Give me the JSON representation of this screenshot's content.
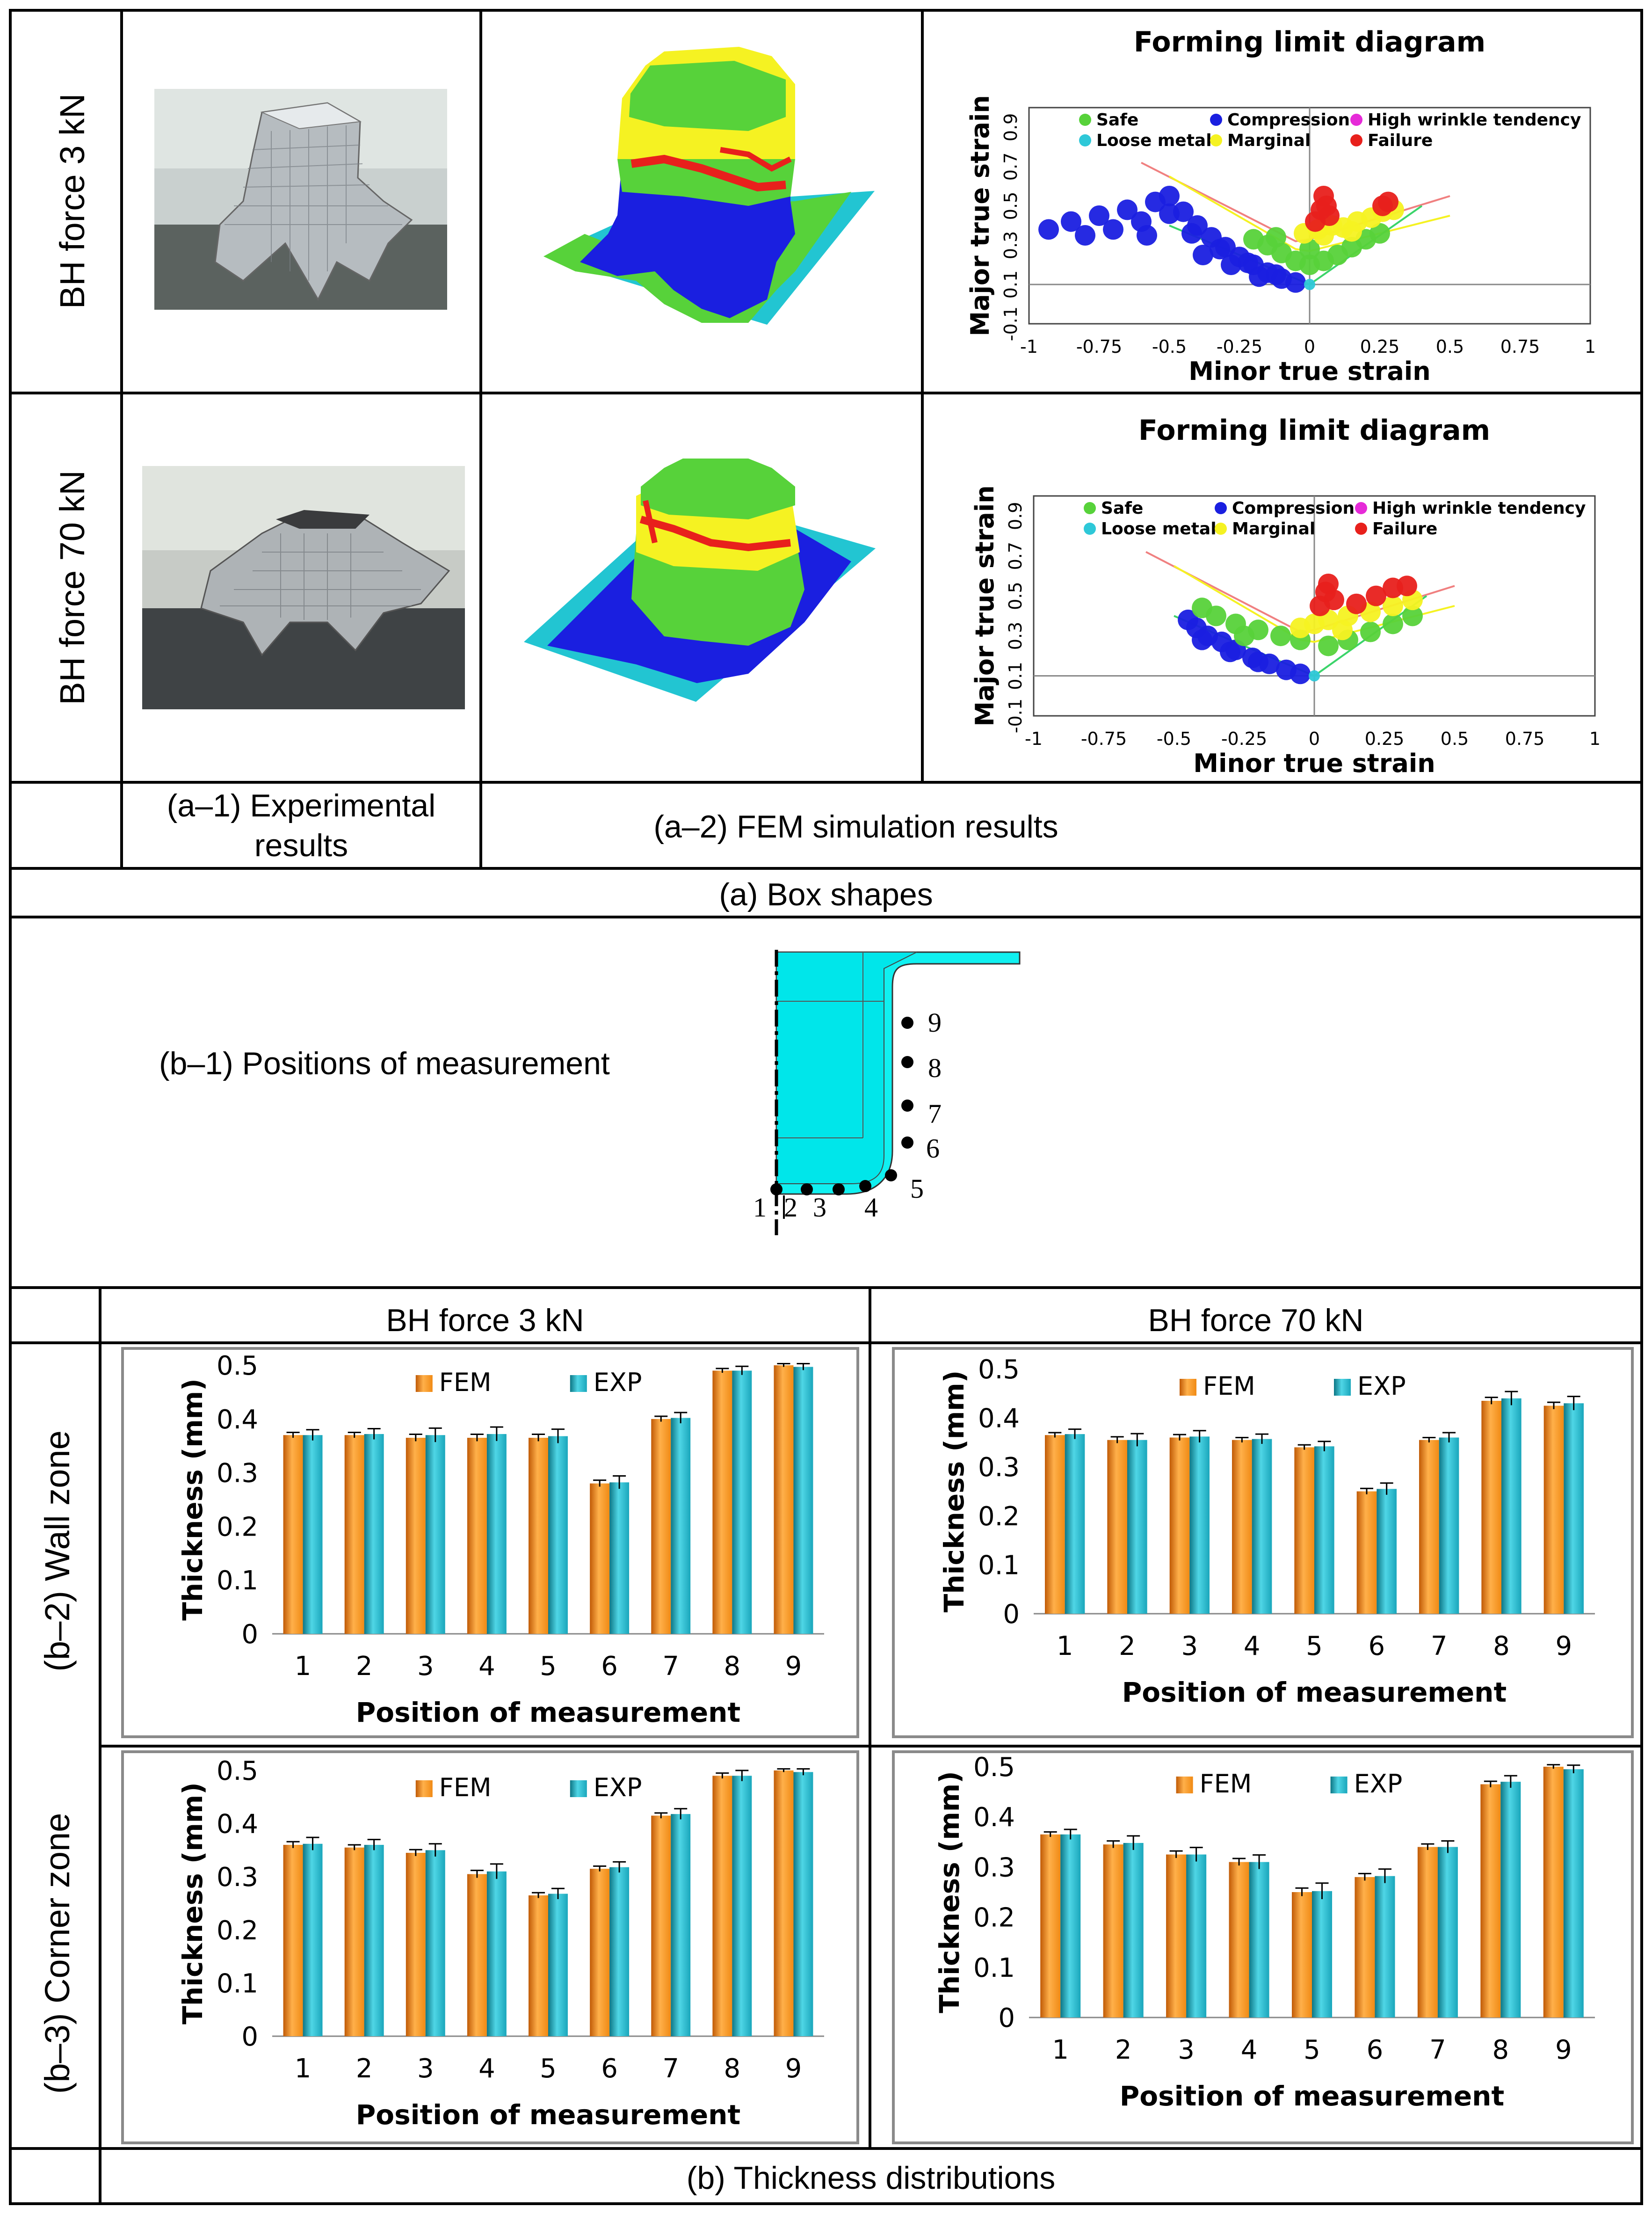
{
  "figure": {
    "row_labels": {
      "bh3": "BH force 3 kN",
      "bh70": "BH force 70 kN"
    },
    "captions": {
      "a1_line1": "(a–1) Experimental",
      "a1_line2": "results",
      "a2": "(a–2) FEM simulation results",
      "a": "(a)  Box shapes",
      "b1": "(b–1) Positions of measurement",
      "b2": "(b–2) Wall zone",
      "b3": "(b–3) Corner zone",
      "b": "(b)  Thickness distributions",
      "col_bh3": "BH force 3 kN",
      "col_bh70": "BH force 70 kN"
    },
    "measurement_points": [
      "1",
      "2",
      "3",
      "4",
      "5",
      "6",
      "7",
      "8",
      "9"
    ],
    "colors": {
      "safe": "#57d23a",
      "compression": "#1a1fe0",
      "loose_metal": "#2ec8d8",
      "marginal": "#f5f222",
      "failure": "#e8201c",
      "high_wrinkle": "#e62ad8",
      "fem_bar": "#f08a14",
      "exp_bar": "#1aa6bb",
      "part_cyan": "#00f0f0"
    }
  },
  "chart_data": [
    {
      "id": "fld_bh3",
      "type": "scatter",
      "title": "Forming limit diagram",
      "xlabel": "Minor true strain",
      "ylabel": "Major true strain",
      "xlim": [
        -1,
        1
      ],
      "ylim": [
        -0.1,
        1.0
      ],
      "xticks": [
        "-1",
        "-0.75",
        "-0.5",
        "-0.25",
        "0",
        "0.25",
        "0.5",
        "0.75",
        "1"
      ],
      "yticks": [
        "-0.1",
        "0.1",
        "0.3",
        "0.5",
        "0.7",
        "0.9"
      ],
      "legend": [
        "Safe",
        "Compression",
        "High wrinkle tendency",
        "Loose metal",
        "Marginal",
        "Failure"
      ],
      "series": [
        {
          "name": "Compression",
          "points": [
            [
              -0.93,
              0.38
            ],
            [
              -0.85,
              0.42
            ],
            [
              -0.75,
              0.45
            ],
            [
              -0.65,
              0.48
            ],
            [
              -0.55,
              0.52
            ],
            [
              -0.5,
              0.55
            ],
            [
              -0.45,
              0.47
            ],
            [
              -0.4,
              0.4
            ],
            [
              -0.35,
              0.34
            ],
            [
              -0.3,
              0.29
            ],
            [
              -0.25,
              0.24
            ],
            [
              -0.2,
              0.2
            ],
            [
              -0.15,
              0.16
            ],
            [
              -0.1,
              0.13
            ],
            [
              -0.05,
              0.11
            ],
            [
              -0.7,
              0.38
            ],
            [
              -0.6,
              0.42
            ],
            [
              -0.5,
              0.46
            ],
            [
              -0.42,
              0.36
            ],
            [
              -0.32,
              0.28
            ],
            [
              -0.22,
              0.21
            ],
            [
              -0.12,
              0.15
            ],
            [
              -0.8,
              0.35
            ],
            [
              -0.58,
              0.35
            ],
            [
              -0.38,
              0.25
            ],
            [
              -0.28,
              0.2
            ],
            [
              -0.18,
              0.14
            ]
          ]
        },
        {
          "name": "Safe",
          "points": [
            [
              -0.15,
              0.3
            ],
            [
              -0.1,
              0.26
            ],
            [
              -0.05,
              0.22
            ],
            [
              0.0,
              0.2
            ],
            [
              0.05,
              0.22
            ],
            [
              0.1,
              0.25
            ],
            [
              0.15,
              0.29
            ],
            [
              0.2,
              0.33
            ],
            [
              0.25,
              0.36
            ],
            [
              -0.2,
              0.33
            ],
            [
              -0.12,
              0.34
            ],
            [
              0.0,
              0.28
            ]
          ]
        },
        {
          "name": "Marginal",
          "points": [
            [
              -0.02,
              0.36
            ],
            [
              0.03,
              0.38
            ],
            [
              0.08,
              0.4
            ],
            [
              0.12,
              0.39
            ],
            [
              0.17,
              0.42
            ],
            [
              0.22,
              0.44
            ],
            [
              0.26,
              0.47
            ],
            [
              0.3,
              0.48
            ],
            [
              0.05,
              0.35
            ],
            [
              0.15,
              0.37
            ]
          ]
        },
        {
          "name": "Failure",
          "points": [
            [
              0.02,
              0.42
            ],
            [
              0.04,
              0.48
            ],
            [
              0.05,
              0.55
            ],
            [
              0.06,
              0.5
            ],
            [
              0.07,
              0.45
            ],
            [
              0.26,
              0.5
            ],
            [
              0.28,
              0.52
            ]
          ]
        },
        {
          "name": "Loose metal",
          "points": [
            [
              0.0,
              0.1
            ]
          ]
        }
      ]
    },
    {
      "id": "fld_bh70",
      "type": "scatter",
      "title": "Forming limit diagram",
      "xlabel": "Minor true strain",
      "ylabel": "Major true strain",
      "xlim": [
        -1,
        1
      ],
      "ylim": [
        -0.1,
        1.0
      ],
      "xticks": [
        "-1",
        "-0.75",
        "-0.5",
        "-0.25",
        "0",
        "0.25",
        "0.5",
        "0.75",
        "1"
      ],
      "yticks": [
        "-0.1",
        "0.1",
        "0.3",
        "0.5",
        "0.7",
        "0.9"
      ],
      "legend": [
        "Safe",
        "Compression",
        "High wrinkle tendency",
        "Loose metal",
        "Marginal",
        "Failure"
      ],
      "series": [
        {
          "name": "Compression",
          "points": [
            [
              -0.45,
              0.38
            ],
            [
              -0.42,
              0.34
            ],
            [
              -0.38,
              0.3
            ],
            [
              -0.33,
              0.27
            ],
            [
              -0.28,
              0.23
            ],
            [
              -0.22,
              0.19
            ],
            [
              -0.16,
              0.16
            ],
            [
              -0.1,
              0.13
            ],
            [
              -0.05,
              0.11
            ],
            [
              -0.4,
              0.28
            ],
            [
              -0.3,
              0.22
            ],
            [
              -0.2,
              0.17
            ]
          ]
        },
        {
          "name": "Safe",
          "points": [
            [
              -0.4,
              0.44
            ],
            [
              -0.35,
              0.4
            ],
            [
              -0.28,
              0.36
            ],
            [
              -0.2,
              0.33
            ],
            [
              -0.12,
              0.3
            ],
            [
              -0.05,
              0.28
            ],
            [
              0.05,
              0.25
            ],
            [
              0.12,
              0.28
            ],
            [
              0.2,
              0.32
            ],
            [
              0.28,
              0.36
            ],
            [
              0.35,
              0.4
            ],
            [
              -0.25,
              0.3
            ]
          ]
        },
        {
          "name": "Marginal",
          "points": [
            [
              -0.05,
              0.34
            ],
            [
              0.0,
              0.36
            ],
            [
              0.05,
              0.38
            ],
            [
              0.12,
              0.4
            ],
            [
              0.2,
              0.42
            ],
            [
              0.28,
              0.45
            ],
            [
              0.35,
              0.48
            ],
            [
              0.1,
              0.33
            ]
          ]
        },
        {
          "name": "Failure",
          "points": [
            [
              0.02,
              0.45
            ],
            [
              0.04,
              0.52
            ],
            [
              0.05,
              0.56
            ],
            [
              0.07,
              0.48
            ],
            [
              0.15,
              0.46
            ],
            [
              0.22,
              0.5
            ],
            [
              0.28,
              0.54
            ],
            [
              0.33,
              0.55
            ]
          ]
        },
        {
          "name": "Loose metal",
          "points": [
            [
              0.0,
              0.1
            ]
          ]
        }
      ]
    },
    {
      "id": "wall_bh3",
      "type": "bar",
      "title": "",
      "categories": [
        "1",
        "2",
        "3",
        "4",
        "5",
        "6",
        "7",
        "8",
        "9"
      ],
      "series": [
        {
          "name": "FEM",
          "values": [
            0.37,
            0.37,
            0.365,
            0.365,
            0.365,
            0.28,
            0.4,
            0.49,
            0.5
          ]
        },
        {
          "name": "EXP",
          "values": [
            0.37,
            0.372,
            0.37,
            0.372,
            0.368,
            0.282,
            0.402,
            0.49,
            0.497
          ]
        }
      ],
      "errors": [
        0.01,
        0.01,
        0.013,
        0.013,
        0.013,
        0.012,
        0.01,
        0.008,
        0.006
      ],
      "xlabel": "Position of measurement",
      "ylabel": "Thickness (mm)",
      "ylim": [
        0,
        0.5
      ],
      "yticks": [
        "0",
        "0.1",
        "0.2",
        "0.3",
        "0.4",
        "0.5"
      ]
    },
    {
      "id": "wall_bh70",
      "type": "bar",
      "title": "",
      "categories": [
        "1",
        "2",
        "3",
        "4",
        "5",
        "6",
        "7",
        "8",
        "9"
      ],
      "series": [
        {
          "name": "FEM",
          "values": [
            0.365,
            0.355,
            0.36,
            0.355,
            0.34,
            0.25,
            0.355,
            0.435,
            0.425
          ]
        },
        {
          "name": "EXP",
          "values": [
            0.367,
            0.355,
            0.362,
            0.357,
            0.342,
            0.255,
            0.36,
            0.44,
            0.43
          ]
        }
      ],
      "errors": [
        0.01,
        0.013,
        0.012,
        0.01,
        0.01,
        0.012,
        0.01,
        0.014,
        0.014
      ],
      "xlabel": "Position of measurement",
      "ylabel": "Thickness (mm)",
      "ylim": [
        0,
        0.5
      ],
      "yticks": [
        "0",
        "0.1",
        "0.2",
        "0.3",
        "0.4",
        "0.5"
      ]
    },
    {
      "id": "corner_bh3",
      "type": "bar",
      "title": "",
      "categories": [
        "1",
        "2",
        "3",
        "4",
        "5",
        "6",
        "7",
        "8",
        "9"
      ],
      "series": [
        {
          "name": "FEM",
          "values": [
            0.36,
            0.355,
            0.345,
            0.305,
            0.265,
            0.315,
            0.415,
            0.49,
            0.5
          ]
        },
        {
          "name": "EXP",
          "values": [
            0.362,
            0.36,
            0.35,
            0.31,
            0.268,
            0.318,
            0.418,
            0.49,
            0.497
          ]
        }
      ],
      "errors": [
        0.012,
        0.01,
        0.012,
        0.014,
        0.01,
        0.01,
        0.01,
        0.01,
        0.006
      ],
      "xlabel": "Position of measurement",
      "ylabel": "Thickness (mm)",
      "ylim": [
        0,
        0.5
      ],
      "yticks": [
        "0",
        "0.1",
        "0.2",
        "0.3",
        "0.4",
        "0.5"
      ]
    },
    {
      "id": "corner_bh70",
      "type": "bar",
      "title": "",
      "categories": [
        "1",
        "2",
        "3",
        "4",
        "5",
        "6",
        "7",
        "8",
        "9"
      ],
      "series": [
        {
          "name": "FEM",
          "values": [
            0.365,
            0.345,
            0.325,
            0.31,
            0.25,
            0.28,
            0.34,
            0.465,
            0.5
          ]
        },
        {
          "name": "EXP",
          "values": [
            0.365,
            0.348,
            0.325,
            0.31,
            0.252,
            0.282,
            0.34,
            0.47,
            0.495
          ]
        }
      ],
      "errors": [
        0.01,
        0.014,
        0.014,
        0.014,
        0.016,
        0.014,
        0.012,
        0.012,
        0.008
      ],
      "xlabel": "Position of measurement",
      "ylabel": "Thickness (mm)",
      "ylim": [
        0,
        0.5
      ],
      "yticks": [
        "0",
        "0.1",
        "0.2",
        "0.3",
        "0.4",
        "0.5"
      ]
    }
  ]
}
